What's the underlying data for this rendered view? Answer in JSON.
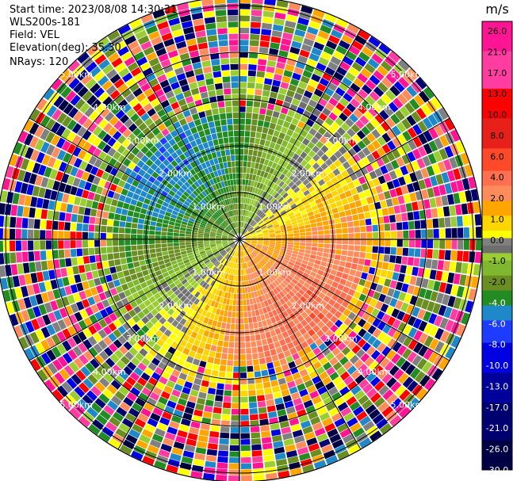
{
  "header": {
    "start_time": "Start time: 2023/08/08 14:30:31",
    "instrument": "WLS200s-181",
    "field": "Field: VEL",
    "elevation": "Elevation(deg): 35.30",
    "nrays": "NRays: 120"
  },
  "chart_data": {
    "type": "ppi",
    "field": "VEL",
    "unit": "m/s",
    "nrays": 120,
    "range_ring_labels": [
      "1.00km",
      "2.00km",
      "3.00km",
      "4.00km",
      "5.00km"
    ],
    "colorbar": {
      "unit": "m/s",
      "ticks": [
        "26.0",
        "21.0",
        "17.0",
        "13.0",
        "10.0",
        "8.0",
        "6.0",
        "4.0",
        "2.0",
        "1.0",
        "0.0",
        "-1.0",
        "-2.0",
        "-4.0",
        "-6.0",
        "-8.0",
        "-10.0",
        "-13.0",
        "-17.0",
        "-21.0",
        "-26.0",
        "-30.0"
      ],
      "bands": [
        {
          "range": [
            26,
            30
          ],
          "color": "#ff1493"
        },
        {
          "range": [
            21,
            26
          ],
          "color": "#ff3ca0"
        },
        {
          "range": [
            17,
            21
          ],
          "color": "#ff0000"
        },
        {
          "range": [
            13,
            17
          ],
          "color": "#e8201a"
        },
        {
          "range": [
            10,
            13
          ],
          "color": "#ff4a2a"
        },
        {
          "range": [
            8,
            10
          ],
          "color": "#ff7050"
        },
        {
          "range": [
            6,
            8
          ],
          "color": "#ff8c5a"
        },
        {
          "range": [
            4,
            6
          ],
          "color": "#ffa500"
        },
        {
          "range": [
            2,
            4
          ],
          "color": "#ffd500"
        },
        {
          "range": [
            1,
            2
          ],
          "color": "#ffff00"
        },
        {
          "range": [
            0,
            1
          ],
          "color": "#808080"
        },
        {
          "range": [
            -1,
            0
          ],
          "color": "#6e6e6e"
        },
        {
          "range": [
            -2,
            -1
          ],
          "color": "#9acd32"
        },
        {
          "range": [
            -4,
            -2
          ],
          "color": "#7fb82e"
        },
        {
          "range": [
            -6,
            -4
          ],
          "color": "#6b8e23"
        },
        {
          "range": [
            -8,
            -6
          ],
          "color": "#228b22"
        },
        {
          "range": [
            -10,
            -8
          ],
          "color": "#1e88c8"
        },
        {
          "range": [
            -13,
            -10
          ],
          "color": "#1e3cff"
        },
        {
          "range": [
            -17,
            -13
          ],
          "color": "#0000e0"
        },
        {
          "range": [
            -21,
            -17
          ],
          "color": "#00009a"
        },
        {
          "range": [
            -26,
            -21
          ],
          "color": "#000070"
        },
        {
          "range": [
            -30,
            -26
          ],
          "color": "#000045"
        }
      ]
    }
  }
}
